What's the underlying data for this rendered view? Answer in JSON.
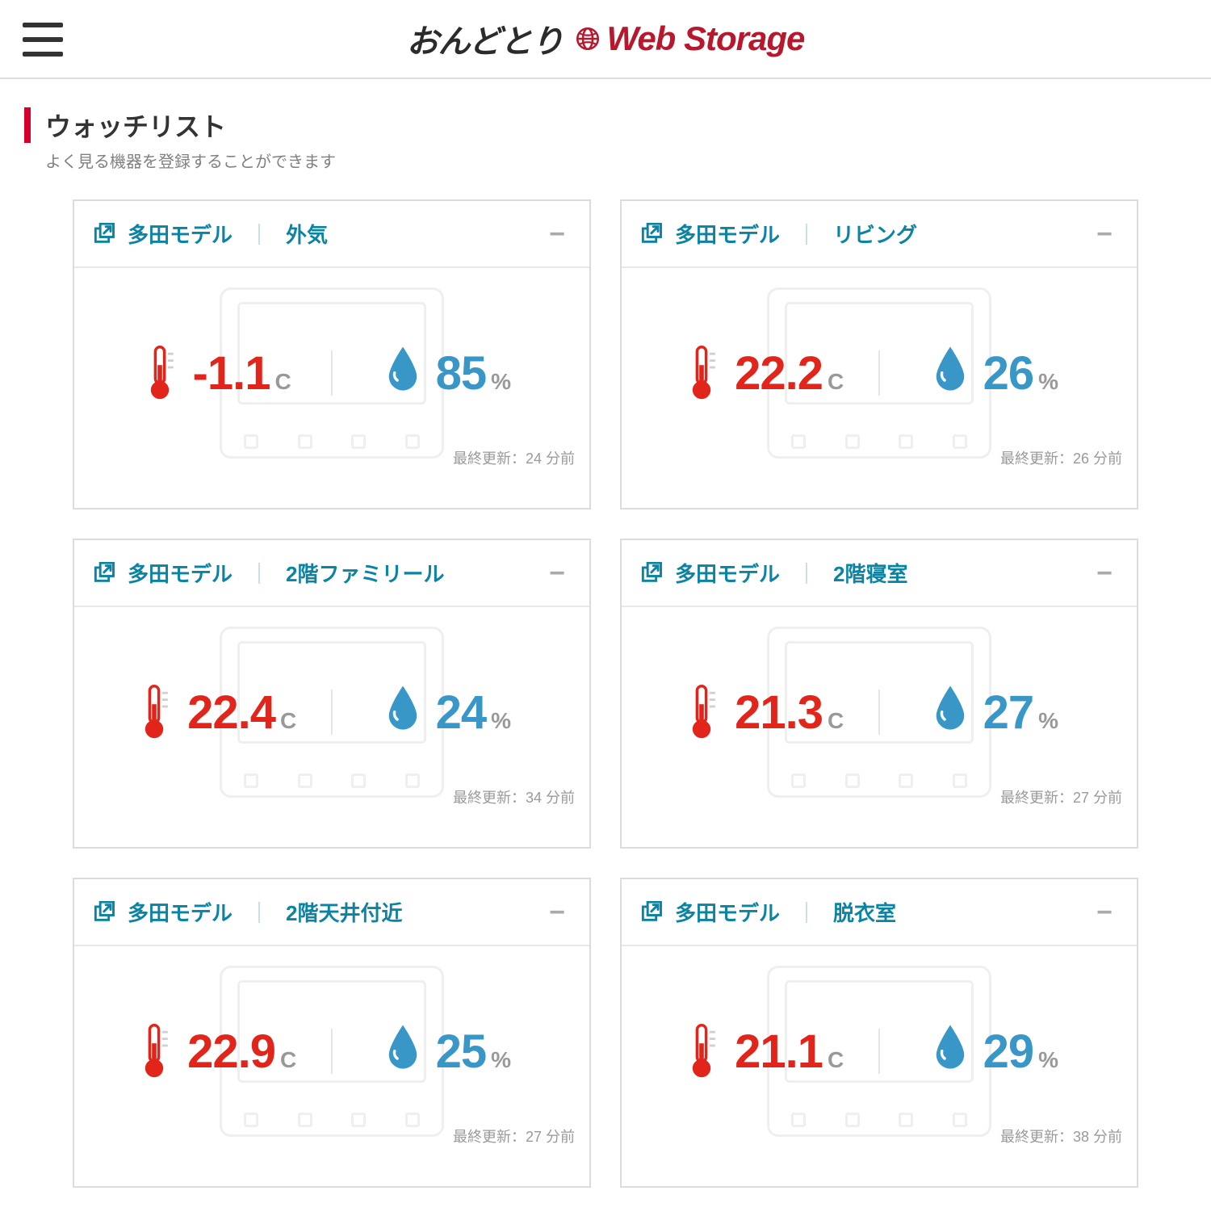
{
  "header": {
    "logo_left": "おんどとり",
    "logo_right": "Web Storage"
  },
  "page": {
    "title": "ウォッチリスト",
    "subtitle": "よく見る機器を登録することができます"
  },
  "colors": {
    "accent_red": "#d5002c",
    "link_teal": "#0b83a3",
    "temp_red": "#e1251b",
    "hum_blue": "#3897c7",
    "muted_gray": "#9a9a9a",
    "border_gray": "#dcdcdc",
    "brand_red": "#b7182e"
  },
  "labels": {
    "updated_prefix": "最終更新：",
    "temp_unit": "C",
    "hum_unit": "%",
    "collapse": "−"
  },
  "cards": [
    {
      "group": "多田モデル",
      "name": "外気",
      "temp": "-1.1",
      "humidity": "85",
      "updated": "24 分前"
    },
    {
      "group": "多田モデル",
      "name": "リビング",
      "temp": "22.2",
      "humidity": "26",
      "updated": "26 分前"
    },
    {
      "group": "多田モデル",
      "name": "2階ファミリール",
      "temp": "22.4",
      "humidity": "24",
      "updated": "34 分前"
    },
    {
      "group": "多田モデル",
      "name": "2階寝室",
      "temp": "21.3",
      "humidity": "27",
      "updated": "27 分前"
    },
    {
      "group": "多田モデル",
      "name": "2階天井付近",
      "temp": "22.9",
      "humidity": "25",
      "updated": "27 分前"
    },
    {
      "group": "多田モデル",
      "name": "脱衣室",
      "temp": "21.1",
      "humidity": "29",
      "updated": "38 分前"
    }
  ]
}
